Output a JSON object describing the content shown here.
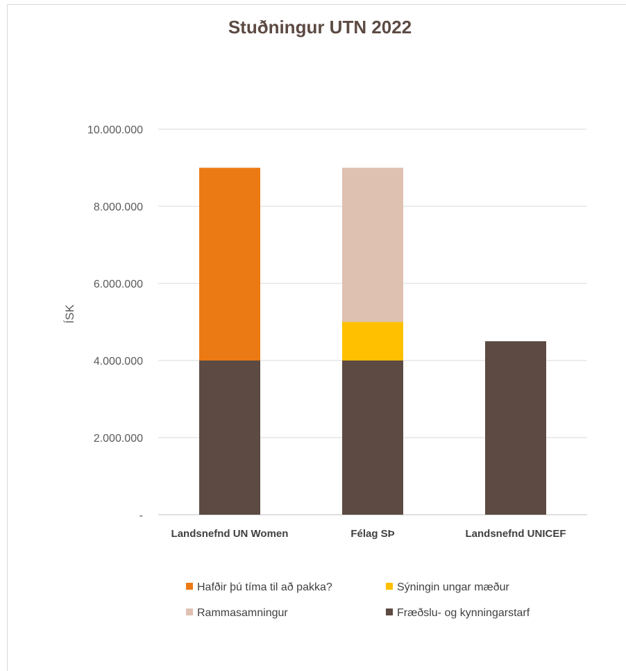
{
  "chart_data": {
    "type": "bar",
    "stacked": true,
    "title": "Stuðningur UTN 2022",
    "ylabel": "ÍSK",
    "xlabel": "",
    "categories": [
      "Landsnefnd UN Women",
      "Félag SÞ",
      "Landsnefnd UNICEF"
    ],
    "ylim": [
      0,
      10000000
    ],
    "yticks": [
      {
        "value": 0,
        "label": "-"
      },
      {
        "value": 2000000,
        "label": "2.000.000"
      },
      {
        "value": 4000000,
        "label": "4.000.000"
      },
      {
        "value": 6000000,
        "label": "6.000.000"
      },
      {
        "value": 8000000,
        "label": "8.000.000"
      },
      {
        "value": 10000000,
        "label": "10.000.000"
      }
    ],
    "grid": true,
    "legend_position": "bottom",
    "series": [
      {
        "name": "Fræðslu- og kynningarstarf",
        "color": "#5c4a43",
        "values": [
          4000000,
          4000000,
          4500000
        ]
      },
      {
        "name": "Sýningin ungar mæður",
        "color": "#ffc000",
        "values": [
          0,
          1000000,
          0
        ]
      },
      {
        "name": "Rammasamningur",
        "color": "#dfc1b2",
        "values": [
          0,
          4000000,
          0
        ]
      },
      {
        "name": "Hafðir þú tíma til að pakka?",
        "color": "#ec7a14",
        "values": [
          5000000,
          0,
          0
        ]
      }
    ],
    "legend_order": [
      3,
      1,
      2,
      0
    ]
  }
}
